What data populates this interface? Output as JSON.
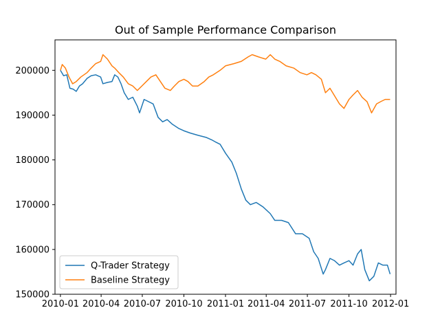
{
  "chart_data": {
    "type": "line",
    "title": "Out of Sample Performance Comparison",
    "xlabel": "",
    "ylabel": "",
    "x_type": "date",
    "xlim": [
      "2009-12-20",
      "2012-01-13"
    ],
    "ylim": [
      150000,
      206800
    ],
    "x_ticks": [
      "2010-01",
      "2010-04",
      "2010-07",
      "2010-10",
      "2011-01",
      "2011-04",
      "2011-07",
      "2011-10",
      "2012-01"
    ],
    "y_ticks": [
      150000,
      160000,
      170000,
      180000,
      190000,
      200000
    ],
    "grid": false,
    "legend_position": "lower-left",
    "colors": {
      "Q-Trader Strategy": "#1f77b4",
      "Baseline Strategy": "#ff7f0e"
    },
    "series": [
      {
        "name": "Q-Trader Strategy",
        "points": [
          [
            "2010-01-01",
            200000
          ],
          [
            "2010-01-08",
            198800
          ],
          [
            "2010-01-15",
            199000
          ],
          [
            "2010-01-22",
            196000
          ],
          [
            "2010-01-29",
            195800
          ],
          [
            "2010-02-05",
            195300
          ],
          [
            "2010-02-12",
            196500
          ],
          [
            "2010-02-19",
            197000
          ],
          [
            "2010-03-01",
            198200
          ],
          [
            "2010-03-10",
            198800
          ],
          [
            "2010-03-20",
            199000
          ],
          [
            "2010-03-31",
            198500
          ],
          [
            "2010-04-05",
            197000
          ],
          [
            "2010-04-15",
            197300
          ],
          [
            "2010-04-25",
            197500
          ],
          [
            "2010-05-01",
            199000
          ],
          [
            "2010-05-08",
            198500
          ],
          [
            "2010-05-15",
            197000
          ],
          [
            "2010-05-22",
            195000
          ],
          [
            "2010-05-31",
            193500
          ],
          [
            "2010-06-10",
            194000
          ],
          [
            "2010-06-20",
            192000
          ],
          [
            "2010-06-25",
            190500
          ],
          [
            "2010-07-05",
            193500
          ],
          [
            "2010-07-15",
            193000
          ],
          [
            "2010-07-25",
            192500
          ],
          [
            "2010-08-05",
            189500
          ],
          [
            "2010-08-15",
            188500
          ],
          [
            "2010-08-25",
            189000
          ],
          [
            "2010-09-05",
            188000
          ],
          [
            "2010-09-20",
            187000
          ],
          [
            "2010-10-01",
            186500
          ],
          [
            "2010-10-15",
            186000
          ],
          [
            "2010-11-01",
            185500
          ],
          [
            "2010-11-20",
            185000
          ],
          [
            "2010-12-01",
            184500
          ],
          [
            "2010-12-10",
            184000
          ],
          [
            "2010-12-20",
            183500
          ],
          [
            "2011-01-01",
            181500
          ],
          [
            "2011-01-15",
            179500
          ],
          [
            "2011-01-25",
            177000
          ],
          [
            "2011-02-05",
            173500
          ],
          [
            "2011-02-15",
            171000
          ],
          [
            "2011-02-25",
            170000
          ],
          [
            "2011-03-10",
            170500
          ],
          [
            "2011-03-25",
            169500
          ],
          [
            "2011-04-10",
            168000
          ],
          [
            "2011-04-20",
            166500
          ],
          [
            "2011-05-05",
            166500
          ],
          [
            "2011-05-20",
            166000
          ],
          [
            "2011-06-05",
            163500
          ],
          [
            "2011-06-20",
            163500
          ],
          [
            "2011-07-05",
            162500
          ],
          [
            "2011-07-15",
            159500
          ],
          [
            "2011-07-25",
            158000
          ],
          [
            "2011-08-05",
            154500
          ],
          [
            "2011-08-10",
            155500
          ],
          [
            "2011-08-20",
            158000
          ],
          [
            "2011-08-30",
            157500
          ],
          [
            "2011-09-10",
            156500
          ],
          [
            "2011-09-20",
            157000
          ],
          [
            "2011-10-01",
            157500
          ],
          [
            "2011-10-10",
            156500
          ],
          [
            "2011-10-20",
            159000
          ],
          [
            "2011-10-28",
            160000
          ],
          [
            "2011-11-05",
            155500
          ],
          [
            "2011-11-15",
            153000
          ],
          [
            "2011-11-25",
            154000
          ],
          [
            "2011-12-05",
            157000
          ],
          [
            "2011-12-15",
            156500
          ],
          [
            "2011-12-25",
            156500
          ],
          [
            "2011-12-31",
            154500
          ]
        ]
      },
      {
        "name": "Baseline Strategy",
        "points": [
          [
            "2010-01-01",
            200000
          ],
          [
            "2010-01-05",
            201300
          ],
          [
            "2010-01-12",
            200500
          ],
          [
            "2010-01-20",
            198500
          ],
          [
            "2010-01-28",
            197000
          ],
          [
            "2010-02-05",
            197500
          ],
          [
            "2010-02-15",
            198500
          ],
          [
            "2010-03-01",
            199500
          ],
          [
            "2010-03-10",
            200500
          ],
          [
            "2010-03-20",
            201500
          ],
          [
            "2010-03-31",
            202000
          ],
          [
            "2010-04-05",
            203500
          ],
          [
            "2010-04-15",
            202500
          ],
          [
            "2010-04-25",
            201000
          ],
          [
            "2010-05-01",
            200500
          ],
          [
            "2010-05-10",
            199500
          ],
          [
            "2010-05-20",
            198500
          ],
          [
            "2010-05-31",
            197000
          ],
          [
            "2010-06-10",
            196500
          ],
          [
            "2010-06-20",
            195500
          ],
          [
            "2010-06-30",
            196500
          ],
          [
            "2010-07-10",
            197500
          ],
          [
            "2010-07-20",
            198500
          ],
          [
            "2010-07-31",
            199000
          ],
          [
            "2010-08-10",
            197500
          ],
          [
            "2010-08-20",
            196000
          ],
          [
            "2010-09-01",
            195500
          ],
          [
            "2010-09-10",
            196500
          ],
          [
            "2010-09-20",
            197500
          ],
          [
            "2010-10-01",
            198000
          ],
          [
            "2010-10-10",
            197500
          ],
          [
            "2010-10-20",
            196500
          ],
          [
            "2010-11-01",
            196500
          ],
          [
            "2010-11-15",
            197500
          ],
          [
            "2010-11-25",
            198500
          ],
          [
            "2010-12-05",
            199000
          ],
          [
            "2010-12-20",
            200000
          ],
          [
            "2011-01-01",
            201000
          ],
          [
            "2011-01-20",
            201500
          ],
          [
            "2011-02-05",
            202000
          ],
          [
            "2011-02-20",
            203000
          ],
          [
            "2011-03-01",
            203500
          ],
          [
            "2011-03-15",
            203000
          ],
          [
            "2011-03-31",
            202500
          ],
          [
            "2011-04-10",
            203500
          ],
          [
            "2011-04-20",
            202500
          ],
          [
            "2011-05-01",
            202000
          ],
          [
            "2011-05-15",
            201000
          ],
          [
            "2011-06-01",
            200500
          ],
          [
            "2011-06-15",
            199500
          ],
          [
            "2011-06-30",
            199000
          ],
          [
            "2011-07-10",
            199500
          ],
          [
            "2011-07-20",
            199000
          ],
          [
            "2011-08-01",
            198000
          ],
          [
            "2011-08-10",
            195000
          ],
          [
            "2011-08-20",
            196000
          ],
          [
            "2011-09-01",
            194000
          ],
          [
            "2011-09-10",
            192500
          ],
          [
            "2011-09-20",
            191500
          ],
          [
            "2011-10-01",
            193500
          ],
          [
            "2011-10-10",
            194500
          ],
          [
            "2011-10-20",
            195500
          ],
          [
            "2011-10-30",
            194000
          ],
          [
            "2011-11-10",
            193000
          ],
          [
            "2011-11-20",
            190500
          ],
          [
            "2011-12-01",
            192500
          ],
          [
            "2011-12-10",
            193000
          ],
          [
            "2011-12-20",
            193500
          ],
          [
            "2011-12-31",
            193500
          ]
        ]
      }
    ]
  }
}
